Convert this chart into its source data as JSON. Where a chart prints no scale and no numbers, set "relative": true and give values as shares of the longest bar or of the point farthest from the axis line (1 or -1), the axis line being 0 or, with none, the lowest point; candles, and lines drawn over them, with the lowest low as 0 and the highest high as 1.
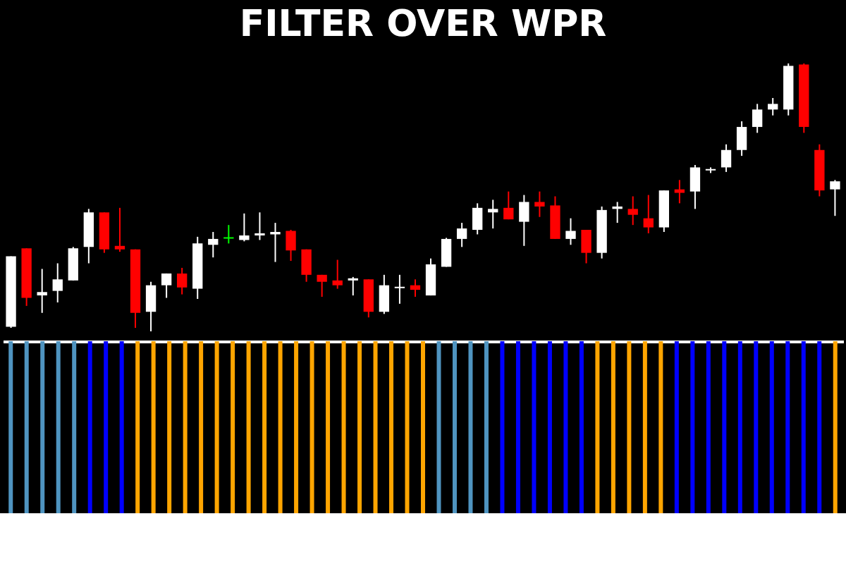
{
  "chart_data": [
    {
      "type": "candlestick",
      "title": "FILTER OVER WPR",
      "relative": true,
      "tick_labels": false,
      "categories": [
        null,
        null,
        null,
        null,
        null,
        null,
        null,
        null,
        null,
        null,
        null,
        null,
        null,
        null,
        null,
        null,
        null,
        null,
        null,
        null,
        null,
        null,
        null,
        null,
        null,
        null,
        null,
        null,
        null,
        null,
        null,
        null,
        null,
        null,
        null,
        null,
        null,
        null,
        null,
        null,
        null,
        null,
        null,
        null,
        null,
        null,
        null,
        null,
        null,
        null,
        null,
        null,
        null,
        null
      ],
      "ohlc": [
        [
          0.017,
          0.28,
          0.013,
          0.28
        ],
        [
          0.31,
          0.31,
          0.095,
          0.125
        ],
        [
          0.134,
          0.233,
          0.069,
          0.147
        ],
        [
          0.151,
          0.254,
          0.108,
          0.194
        ],
        [
          0.19,
          0.315,
          0.19,
          0.31
        ],
        [
          0.315,
          0.457,
          0.254,
          0.444
        ],
        [
          0.444,
          0.444,
          0.293,
          0.306
        ],
        [
          0.319,
          0.461,
          0.297,
          0.306
        ],
        [
          0.306,
          0.306,
          0.013,
          0.069
        ],
        [
          0.073,
          0.185,
          0.0,
          0.172
        ],
        [
          0.172,
          0.216,
          0.125,
          0.216
        ],
        [
          0.216,
          0.237,
          0.138,
          0.164
        ],
        [
          0.159,
          0.353,
          0.121,
          0.328
        ],
        [
          0.323,
          0.371,
          0.276,
          0.345
        ],
        [
          0.349,
          0.397,
          0.328,
          0.349
        ],
        [
          0.341,
          0.44,
          0.336,
          0.358
        ],
        [
          0.358,
          0.444,
          0.341,
          0.366
        ],
        [
          0.362,
          0.405,
          0.259,
          0.371
        ],
        [
          0.375,
          0.379,
          0.263,
          0.302
        ],
        [
          0.306,
          0.306,
          0.185,
          0.211
        ],
        [
          0.211,
          0.211,
          0.129,
          0.185
        ],
        [
          0.19,
          0.267,
          0.159,
          0.172
        ],
        [
          0.19,
          0.203,
          0.134,
          0.198
        ],
        [
          0.194,
          0.194,
          0.052,
          0.073
        ],
        [
          0.073,
          0.211,
          0.065,
          0.172
        ],
        [
          0.164,
          0.211,
          0.103,
          0.164
        ],
        [
          0.172,
          0.194,
          0.129,
          0.155
        ],
        [
          0.134,
          0.272,
          0.134,
          0.25
        ],
        [
          0.241,
          0.349,
          0.241,
          0.345
        ],
        [
          0.345,
          0.405,
          0.315,
          0.384
        ],
        [
          0.379,
          0.478,
          0.362,
          0.461
        ],
        [
          0.444,
          0.491,
          0.384,
          0.457
        ],
        [
          0.461,
          0.522,
          0.418,
          0.418
        ],
        [
          0.409,
          0.509,
          0.319,
          0.483
        ],
        [
          0.483,
          0.522,
          0.427,
          0.466
        ],
        [
          0.47,
          0.504,
          0.345,
          0.345
        ],
        [
          0.345,
          0.422,
          0.323,
          0.375
        ],
        [
          0.379,
          0.379,
          0.254,
          0.293
        ],
        [
          0.293,
          0.466,
          0.272,
          0.453
        ],
        [
          0.457,
          0.483,
          0.405,
          0.466
        ],
        [
          0.457,
          0.504,
          0.397,
          0.435
        ],
        [
          0.422,
          0.509,
          0.366,
          0.388
        ],
        [
          0.388,
          0.526,
          0.371,
          0.526
        ],
        [
          0.53,
          0.565,
          0.478,
          0.517
        ],
        [
          0.522,
          0.621,
          0.457,
          0.612
        ],
        [
          0.603,
          0.612,
          0.591,
          0.603
        ],
        [
          0.612,
          0.698,
          0.595,
          0.677
        ],
        [
          0.677,
          0.784,
          0.655,
          0.763
        ],
        [
          0.763,
          0.849,
          0.741,
          0.828
        ],
        [
          0.828,
          0.871,
          0.806,
          0.849
        ],
        [
          0.828,
          1.0,
          0.806,
          0.991
        ],
        [
          0.996,
          1.0,
          0.741,
          0.763
        ],
        [
          0.677,
          0.698,
          0.504,
          0.526
        ],
        [
          0.53,
          0.565,
          0.431,
          0.56
        ]
      ],
      "colors": [
        "#ffffff",
        "#ff0000",
        "#ffffff",
        "#ffffff",
        "#ffffff",
        "#ffffff",
        "#ff0000",
        "#ff0000",
        "#ff0000",
        "#ffffff",
        "#ffffff",
        "#ff0000",
        "#ffffff",
        "#ffffff",
        "#00ff00",
        "#ffffff",
        "#ffffff",
        "#ffffff",
        "#ff0000",
        "#ff0000",
        "#ff0000",
        "#ff0000",
        "#ffffff",
        "#ff0000",
        "#ffffff",
        "#ffffff",
        "#ff0000",
        "#ffffff",
        "#ffffff",
        "#ffffff",
        "#ffffff",
        "#ffffff",
        "#ff0000",
        "#ffffff",
        "#ff0000",
        "#ff0000",
        "#ffffff",
        "#ff0000",
        "#ffffff",
        "#ffffff",
        "#ff0000",
        "#ff0000",
        "#ffffff",
        "#ff0000",
        "#ffffff",
        "#ffffff",
        "#ffffff",
        "#ffffff",
        "#ffffff",
        "#ffffff",
        "#ffffff",
        "#ff0000",
        "#ff0000",
        "#ffffff"
      ]
    },
    {
      "type": "bar",
      "relative": true,
      "tick_labels": false,
      "categories": [
        null,
        null,
        null,
        null,
        null,
        null,
        null,
        null,
        null,
        null,
        null,
        null,
        null,
        null,
        null,
        null,
        null,
        null,
        null,
        null,
        null,
        null,
        null,
        null,
        null,
        null,
        null,
        null,
        null,
        null,
        null,
        null,
        null,
        null,
        null,
        null,
        null,
        null,
        null,
        null,
        null,
        null,
        null,
        null,
        null,
        null,
        null,
        null,
        null,
        null,
        null,
        null,
        null
      ],
      "values": [
        -1,
        -1,
        -1,
        -1,
        -1,
        -1,
        -1,
        -1,
        -1,
        -1,
        -1,
        -1,
        -1,
        -1,
        -1,
        -1,
        -1,
        -1,
        -1,
        -1,
        -1,
        -1,
        -1,
        -1,
        -1,
        -1,
        -1,
        -1,
        -1,
        -1,
        -1,
        -1,
        -1,
        -1,
        -1,
        -1,
        -1,
        -1,
        -1,
        -1,
        -1,
        -1,
        -1,
        -1,
        -1,
        -1,
        -1,
        -1,
        -1,
        -1,
        -1,
        -1,
        -1
      ],
      "colors": [
        "#4f94c0",
        "#4f94c0",
        "#4f94c0",
        "#4f94c0",
        "#4f94c0",
        "#0000ff",
        "#0000ff",
        "#0000ff",
        "#ffa500",
        "#ffa500",
        "#ffa500",
        "#ffa500",
        "#ffa500",
        "#ffa500",
        "#ffa500",
        "#ffa500",
        "#ffa500",
        "#ffa500",
        "#ffa500",
        "#ffa500",
        "#ffa500",
        "#ffa500",
        "#ffa500",
        "#ffa500",
        "#ffa500",
        "#ffa500",
        "#ffa500",
        "#4f94c0",
        "#4f94c0",
        "#4f94c0",
        "#4f94c0",
        "#0000ff",
        "#0000ff",
        "#0000ff",
        "#0000ff",
        "#0000ff",
        "#0000ff",
        "#ffa500",
        "#ffa500",
        "#ffa500",
        "#ffa500",
        "#ffa500",
        "#0000ff",
        "#0000ff",
        "#0000ff",
        "#0000ff",
        "#0000ff",
        "#0000ff",
        "#0000ff",
        "#0000ff",
        "#0000ff",
        "#0000ff",
        "#ffa500"
      ]
    }
  ]
}
